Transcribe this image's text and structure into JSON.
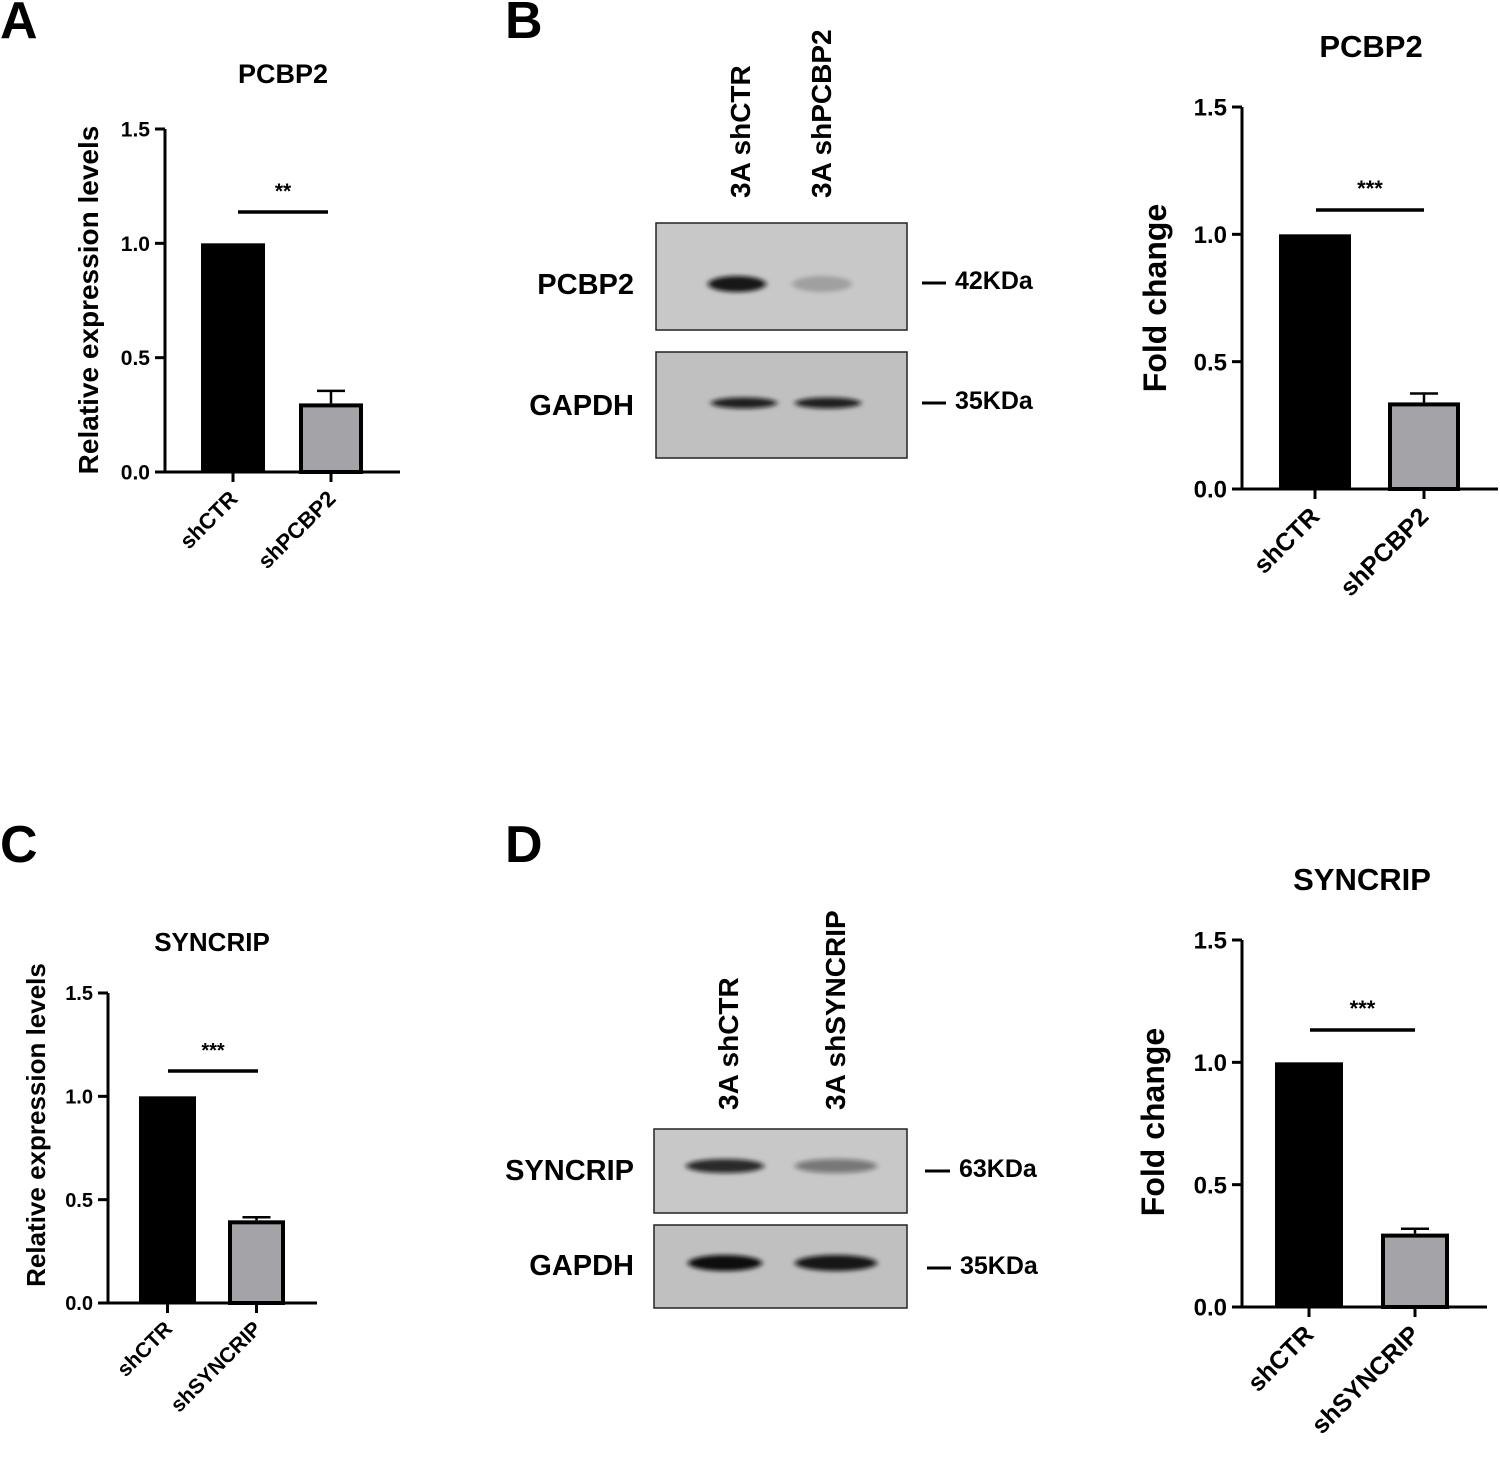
{
  "panel_labels": [
    "A",
    "B",
    "C",
    "D"
  ],
  "colors": {
    "ctrl_bar": "#000000",
    "kd_bar": "#a4a4a8",
    "axis": "#000000",
    "blot_bg": "#c4c4c4",
    "blot_border": "#222222"
  },
  "chart_data": [
    {
      "id": "A",
      "type": "bar",
      "title": "PCBP2",
      "ylabel": "Relative expression levels",
      "xlabel": "",
      "categories": [
        "shCTR",
        "shPCBP2"
      ],
      "values": [
        1.0,
        0.3
      ],
      "errors": [
        0,
        0.055
      ],
      "ylim": [
        0,
        1.5
      ],
      "yticks": [
        "0.0",
        "0.5",
        "1.0",
        "1.5"
      ],
      "significance": "**",
      "grid": false
    },
    {
      "id": "B",
      "type": "bar",
      "title": "PCBP2",
      "ylabel": "Fold change",
      "xlabel": "",
      "categories": [
        "shCTR",
        "shPCBP2"
      ],
      "values": [
        1.0,
        0.34
      ],
      "errors": [
        0,
        0.035
      ],
      "ylim": [
        0,
        1.5
      ],
      "yticks": [
        "0.0",
        "0.5",
        "1.0",
        "1.5"
      ],
      "significance": "***",
      "grid": false
    },
    {
      "id": "C",
      "type": "bar",
      "title": "SYNCRIP",
      "ylabel": "Relative expression levels",
      "xlabel": "",
      "categories": [
        "shCTR",
        "shSYNCRIP"
      ],
      "values": [
        1.0,
        0.4
      ],
      "errors": [
        0,
        0.015
      ],
      "ylim": [
        0,
        1.5
      ],
      "yticks": [
        "0.0",
        "0.5",
        "1.0",
        "1.5"
      ],
      "significance": "***",
      "grid": false
    },
    {
      "id": "D",
      "type": "bar",
      "title": "SYNCRIP",
      "ylabel": "Fold change",
      "xlabel": "",
      "categories": [
        "shCTR",
        "shSYNCRIP"
      ],
      "values": [
        1.0,
        0.3
      ],
      "errors": [
        0,
        0.02
      ],
      "ylim": [
        0,
        1.5
      ],
      "yticks": [
        "0.0",
        "0.5",
        "1.0",
        "1.5"
      ],
      "significance": "***",
      "grid": false
    }
  ],
  "blots": [
    {
      "id": "B",
      "lanes": [
        "3A shCTR",
        "3A shPCBP2"
      ],
      "rows": [
        {
          "protein": "PCBP2",
          "marker": "42KDa",
          "intensity": [
            0.95,
            0.2
          ]
        },
        {
          "protein": "GAPDH",
          "marker": "35KDa",
          "intensity": [
            0.9,
            0.9
          ]
        }
      ]
    },
    {
      "id": "D",
      "lanes": [
        "3A shCTR",
        "3A shSYNCRIP"
      ],
      "rows": [
        {
          "protein": "SYNCRIP",
          "marker": "63KDa",
          "intensity": [
            0.85,
            0.45
          ]
        },
        {
          "protein": "GAPDH",
          "marker": "35KDa",
          "intensity": [
            1.0,
            0.95
          ]
        }
      ]
    }
  ]
}
